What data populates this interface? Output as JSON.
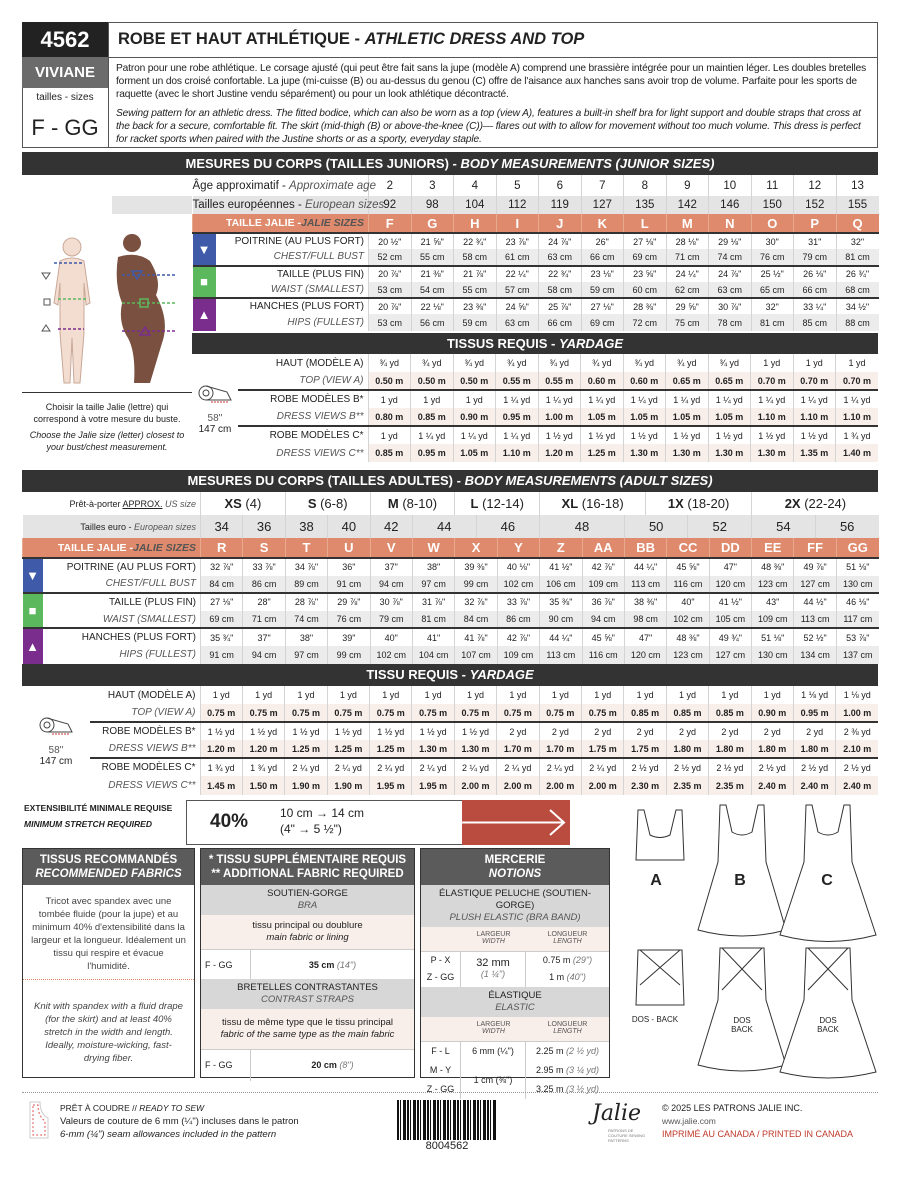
{
  "header": {
    "number": "4562",
    "name": "VIVIANE",
    "sizes_label": "tailles - sizes",
    "size_range": "F - GG",
    "title_fr": "ROBE ET HAUT ATHLÉTIQUE - ",
    "title_en": "ATHLETIC DRESS AND TOP",
    "desc_fr": "Patron pour une robe athlétique. Le corsage ajusté (qui peut être fait sans la jupe (modèle A) comprend une brassière intégrée pour un maintien léger. Les doubles bretelles forment un dos croisé confortable. La jupe (mi-cuisse (B) ou au-dessus du genou (C) offre de l'aisance aux hanches sans avoir trop de volume. Parfaite pour les sports de raquette (avec le short Justine vendu séparément) ou pour un look athlétique décontracté.",
    "desc_en": "Sewing pattern for an athletic dress. The fitted bodice, which can also be worn as a top (view A), features a built-in shelf bra for light support and double straps that cross at the back for a secure, comfortable fit. The skirt (mid-thigh (B) or above-the-knee (C))— flares out with to allow for movement without too much volume. This dress is perfect for racket sports when paired with the Justine shorts or as a sporty, everyday staple."
  },
  "colors": {
    "chest": "#3f5aa8",
    "waist": "#5cb85c",
    "hips": "#7b2d8e",
    "jalie": "#df8a6c",
    "stretch": "#b94c3f",
    "dark": "#333333"
  },
  "junior": {
    "title_fr": "MESURES DU CORPS (TAILLES JUNIORS) - ",
    "title_en": "BODY MEASUREMENTS (JUNIOR SIZES)",
    "row1_fr": "Âge approximatif",
    "row1_en": "Approximate age",
    "values1": [
      "2",
      "3",
      "4",
      "5",
      "6",
      "7",
      "8",
      "9",
      "10",
      "11",
      "12",
      "13"
    ],
    "euro_fr": "Tailles européennes",
    "euro_en": "European sizes",
    "euro": [
      "92",
      "98",
      "104",
      "112",
      "119",
      "127",
      "135",
      "142",
      "146",
      "150",
      "152",
      "155"
    ],
    "jalie_fr": "TAILLE JALIE -",
    "jalie_en": "JALIE SIZES",
    "sizes": [
      "F",
      "G",
      "H",
      "I",
      "J",
      "K",
      "L",
      "M",
      "N",
      "O",
      "P",
      "Q"
    ],
    "measurements": [
      {
        "label_fr": "POITRINE (AU PLUS FORT)",
        "label_en": "CHEST/FULL BUST",
        "icon": "triangle-down-icon",
        "inches": [
          "20 ½\"",
          "21 ⅝\"",
          "22 ¾\"",
          "23 ⅞\"",
          "24 ⅞\"",
          "26\"",
          "27 ⅛\"",
          "28 ⅛\"",
          "29 ⅛\"",
          "30\"",
          "31\"",
          "32\""
        ],
        "cm": [
          "52 cm",
          "55 cm",
          "58 cm",
          "61 cm",
          "63 cm",
          "66 cm",
          "69 cm",
          "71 cm",
          "74 cm",
          "76 cm",
          "79 cm",
          "81 cm"
        ]
      },
      {
        "label_fr": "TAILLE (PLUS FIN)",
        "label_en": "WAIST (SMALLEST)",
        "icon": "square-icon",
        "inches": [
          "20 ⅞\"",
          "21 ⅜\"",
          "21 ⅞\"",
          "22 ¼\"",
          "22 ¾\"",
          "23 ⅛\"",
          "23 ⅝\"",
          "24 ¼\"",
          "24 ⅞\"",
          "25 ½\"",
          "26 ⅛\"",
          "26 ¾\""
        ],
        "cm": [
          "53 cm",
          "54 cm",
          "55 cm",
          "57 cm",
          "58 cm",
          "59 cm",
          "60 cm",
          "62 cm",
          "63 cm",
          "65 cm",
          "66 cm",
          "68 cm"
        ]
      },
      {
        "label_fr": "HANCHES (PLUS FORT)",
        "label_en": "HIPS (FULLEST)",
        "icon": "triangle-up-icon",
        "inches": [
          "20 ⅞\"",
          "22 ⅛\"",
          "23 ⅜\"",
          "24 ⅝\"",
          "25 ⅞\"",
          "27 ⅛\"",
          "28 ⅜\"",
          "29 ⅝\"",
          "30 ⅞\"",
          "32\"",
          "33 ¼\"",
          "34 ½\""
        ],
        "cm": [
          "53 cm",
          "56 cm",
          "59 cm",
          "63 cm",
          "66 cm",
          "69 cm",
          "72 cm",
          "75 cm",
          "78 cm",
          "81 cm",
          "85 cm",
          "88 cm"
        ]
      }
    ],
    "note_fr": "Choisir la taille Jalie (lettre) qui correspond à votre mesure du buste.",
    "note_en": "Choose the Jalie size (letter) closest to your bust/chest measurement.",
    "yardage": {
      "title_fr": "TISSUS REQUIS - ",
      "title_en": "YARDAGE",
      "width_in": "58''",
      "width_cm": "147 cm",
      "rows": [
        {
          "label_fr": "HAUT (MODÈLE A)",
          "label_en": "TOP (VIEW A)",
          "yd": [
            "¾ yd",
            "¾ yd",
            "¾ yd",
            "¾ yd",
            "¾ yd",
            "¾ yd",
            "¾ yd",
            "¾ yd",
            "¾ yd",
            "1 yd",
            "1 yd",
            "1 yd"
          ],
          "m": [
            "0.50 m",
            "0.50 m",
            "0.50 m",
            "0.55 m",
            "0.55 m",
            "0.60 m",
            "0.60 m",
            "0.65 m",
            "0.65 m",
            "0.70 m",
            "0.70 m",
            "0.70 m"
          ]
        },
        {
          "label_fr": "ROBE MODÈLES B*",
          "label_en": "DRESS VIEWS B**",
          "yd": [
            "1 yd",
            "1 yd",
            "1 yd",
            "1 ¼ yd",
            "1 ¼ yd",
            "1 ¼ yd",
            "1 ¼ yd",
            "1 ¼ yd",
            "1 ¼ yd",
            "1 ¼ yd",
            "1 ¼ yd",
            "1 ¼ yd"
          ],
          "m": [
            "0.80 m",
            "0.85 m",
            "0.90 m",
            "0.95 m",
            "1.00 m",
            "1.05 m",
            "1.05 m",
            "1.05 m",
            "1.05 m",
            "1.10 m",
            "1.10 m",
            "1.10 m"
          ]
        },
        {
          "label_fr": "ROBE MODÈLES C*",
          "label_en": "DRESS VIEWS C**",
          "yd": [
            "1 yd",
            "1 ¼ yd",
            "1 ¼ yd",
            "1 ¼ yd",
            "1 ½ yd",
            "1 ½ yd",
            "1 ½ yd",
            "1 ½ yd",
            "1 ½ yd",
            "1 ½ yd",
            "1 ½ yd",
            "1 ¾ yd"
          ],
          "m": [
            "0.85 m",
            "0.95 m",
            "1.05 m",
            "1.10 m",
            "1.20 m",
            "1.25 m",
            "1.30 m",
            "1.30 m",
            "1.30 m",
            "1.30 m",
            "1.35 m",
            "1.40 m"
          ]
        }
      ]
    }
  },
  "adult": {
    "title_fr": "MESURES DU CORPS (TAILLES ADULTES) - ",
    "title_en": "BODY MEASUREMENTS (ADULT SIZES)",
    "us_fr": "Prêt-à-porter ",
    "us_approx": "APPROX.",
    "us_en": " US size",
    "us_sizes": [
      {
        "size": "XS",
        "range": " (4)"
      },
      {
        "size": "S",
        "range": " (6-8)"
      },
      {
        "size": "M",
        "range": " (8-10)"
      },
      {
        "size": "L",
        "range": " (12-14)"
      },
      {
        "size": "XL",
        "range": " (16-18)"
      },
      {
        "size": "1X",
        "range": " (18-20)"
      },
      {
        "size": "2X",
        "range": " (22-24)"
      }
    ],
    "euro_fr": "Tailles euro - ",
    "euro_en": "European sizes",
    "euro": [
      "34",
      "36",
      "38",
      "40",
      "42",
      "44",
      "46",
      "48",
      "50",
      "52",
      "54",
      "56"
    ],
    "jalie_fr": "TAILLE JALIE -",
    "jalie_en": "JALIE SIZES",
    "sizes": [
      "R",
      "S",
      "T",
      "U",
      "V",
      "W",
      "X",
      "Y",
      "Z",
      "AA",
      "BB",
      "CC",
      "DD",
      "EE",
      "FF",
      "GG"
    ],
    "measurements": [
      {
        "label_fr": "POITRINE (AU PLUS FORT)",
        "label_en": "CHEST/FULL BUST",
        "icon": "triangle-down-icon",
        "inches": [
          "32 ⅞\"",
          "33 ⅞\"",
          "34 ⅞\"",
          "36\"",
          "37\"",
          "38\"",
          "39 ⅜\"",
          "40 ⅛\"",
          "41 ½\"",
          "42 ⅞\"",
          "44 ¼\"",
          "45 ⅝\"",
          "47\"",
          "48 ⅜\"",
          "49 ⅞\"",
          "51 ⅛\""
        ],
        "cm": [
          "84 cm",
          "86 cm",
          "89 cm",
          "91 cm",
          "94 cm",
          "97 cm",
          "99 cm",
          "102 cm",
          "106 cm",
          "109 cm",
          "113 cm",
          "116 cm",
          "120 cm",
          "123 cm",
          "127 cm",
          "130 cm"
        ]
      },
      {
        "label_fr": "TAILLE (PLUS FIN)",
        "label_en": "WAIST (SMALLEST)",
        "icon": "square-icon",
        "inches": [
          "27 ⅛\"",
          "28\"",
          "28 ⅞\"",
          "29 ⅞\"",
          "30 ⅞\"",
          "31 ⅞\"",
          "32 ⅞\"",
          "33 ⅞\"",
          "35 ⅜\"",
          "36 ⅞\"",
          "38 ⅜\"",
          "40\"",
          "41 ½\"",
          "43\"",
          "44 ½\"",
          "46 ⅛\""
        ],
        "cm": [
          "69 cm",
          "71 cm",
          "74 cm",
          "76 cm",
          "79 cm",
          "81 cm",
          "84 cm",
          "86 cm",
          "90 cm",
          "94 cm",
          "98 cm",
          "102 cm",
          "105 cm",
          "109 cm",
          "113 cm",
          "117 cm"
        ]
      },
      {
        "label_fr": "HANCHES (PLUS FORT)",
        "label_en": "HIPS (FULLEST)",
        "icon": "triangle-up-icon",
        "inches": [
          "35 ¾\"",
          "37\"",
          "38\"",
          "39\"",
          "40\"",
          "41\"",
          "41 ⅞\"",
          "42 ⅞\"",
          "44 ¼\"",
          "45 ⅝\"",
          "47\"",
          "48 ⅜\"",
          "49 ¾\"",
          "51 ⅛\"",
          "52 ½\"",
          "53 ⅞\""
        ],
        "cm": [
          "91 cm",
          "94 cm",
          "97 cm",
          "99 cm",
          "102 cm",
          "104 cm",
          "107 cm",
          "109 cm",
          "113 cm",
          "116 cm",
          "120 cm",
          "123 cm",
          "127 cm",
          "130 cm",
          "134 cm",
          "137 cm"
        ]
      }
    ],
    "yardage": {
      "title_fr": "TISSU REQUIS - ",
      "title_en": "YARDAGE",
      "width_in": "58''",
      "width_cm": "147 cm",
      "rows": [
        {
          "label_fr": "HAUT (MODÈLE A)",
          "label_en": "TOP (VIEW A)",
          "yd": [
            "1 yd",
            "1 yd",
            "1 yd",
            "1 yd",
            "1 yd",
            "1 yd",
            "1 yd",
            "1 yd",
            "1 yd",
            "1 yd",
            "1 yd",
            "1 yd",
            "1 yd",
            "1 yd",
            "1 ⅛ yd",
            "1 ⅛ yd"
          ],
          "m": [
            "0.75 m",
            "0.75 m",
            "0.75 m",
            "0.75 m",
            "0.75 m",
            "0.75 m",
            "0.75 m",
            "0.75 m",
            "0.75 m",
            "0.75 m",
            "0.85 m",
            "0.85 m",
            "0.85 m",
            "0.90 m",
            "0.95 m",
            "1.00 m"
          ]
        },
        {
          "label_fr": "ROBE MODÈLES B*",
          "label_en": "DRESS VIEWS B**",
          "yd": [
            "1 ½ yd",
            "1 ½ yd",
            "1 ½ yd",
            "1 ½ yd",
            "1 ½ yd",
            "1 ½ yd",
            "1 ½ yd",
            "2 yd",
            "2 yd",
            "2 yd",
            "2 yd",
            "2 yd",
            "2 yd",
            "2 yd",
            "2 yd",
            "2 ⅜ yd"
          ],
          "m": [
            "1.20 m",
            "1.20 m",
            "1.25 m",
            "1.25 m",
            "1.25 m",
            "1.30 m",
            "1.30 m",
            "1.70 m",
            "1.70 m",
            "1.75 m",
            "1.75 m",
            "1.80 m",
            "1.80 m",
            "1.80 m",
            "1.80 m",
            "2.10 m"
          ]
        },
        {
          "label_fr": "ROBE MODÈLES C*",
          "label_en": "DRESS VIEWS C**",
          "yd": [
            "1 ¾ yd",
            "1 ¾ yd",
            "2 ¼ yd",
            "2 ¼ yd",
            "2 ¼ yd",
            "2 ¼ yd",
            "2 ¼ yd",
            "2 ¼ yd",
            "2 ¼ yd",
            "2 ¼ yd",
            "2 ½ yd",
            "2 ½ yd",
            "2 ½ yd",
            "2 ½ yd",
            "2 ½ yd",
            "2 ½ yd"
          ],
          "m": [
            "1.45 m",
            "1.50 m",
            "1.90 m",
            "1.90 m",
            "1.95 m",
            "1.95 m",
            "2.00 m",
            "2.00 m",
            "2.00 m",
            "2.00 m",
            "2.30 m",
            "2.35 m",
            "2.35 m",
            "2.40 m",
            "2.40 m",
            "2.40 m"
          ]
        }
      ]
    }
  },
  "stretch": {
    "label_fr": "EXTENSIBILITÉ MINIMALE REQUISE",
    "label_en": "MINIMUM STRETCH REQUIRED",
    "percent": "40%",
    "metric": "10 cm → 14 cm",
    "imperial": "(4\" → 5 ½\")",
    "icon": "arrow-right-icon"
  },
  "fabrics": {
    "title_fr": "TISSUS RECOMMANDÉS",
    "title_en": "RECOMMENDED FABRICS",
    "text_fr": "Tricot avec spandex avec une tombée fluide (pour la jupe) et au minimum 40% d'extensibilité dans la largeur et la longueur. Idéalement un tissu qui respire et évacue l'humidité.",
    "text_en": "Knit with spandex with a fluid drape (for the skirt) and at least 40% stretch in the width and length. Ideally, moisture-wicking, fast-drying fiber."
  },
  "additional": {
    "title_fr": "* TISSU SUPPLÉMENTAIRE REQUIS",
    "title_en": "** ADDITIONAL FABRIC REQUIRED",
    "items": [
      {
        "name_fr": "SOUTIEN-GORGE",
        "name_en": "BRA",
        "fabric_fr": "tissu principal ou doublure",
        "fabric_en": "main fabric or lining",
        "sizes": "F - GG",
        "amount": "35 cm",
        "amount_in": "(14\")"
      },
      {
        "name_fr": "BRETELLES CONTRASTANTES",
        "name_en": "CONTRAST STRAPS",
        "fabric_fr": "tissu de même type que le tissu principal",
        "fabric_en": "fabric of the same type as the main fabric",
        "sizes": "F - GG",
        "amount": "20 cm",
        "amount_in": "(8\")"
      }
    ]
  },
  "notions": {
    "title_fr": "MERCERIE",
    "title_en": "NOTIONS",
    "width_fr": "LARGEUR",
    "width_en": "WIDTH",
    "length_fr": "LONGUEUR",
    "length_en": "LENGTH",
    "plush": {
      "name_fr": "ÉLASTIQUE PELUCHE (SOUTIEN-GORGE)",
      "name_en": "PLUSH ELASTIC (BRA BAND)",
      "width": "32 mm",
      "width_in": "(1 ¼\")",
      "rows": [
        {
          "sizes": "P - X",
          "length": "0.75 m",
          "length_in": "(29\")"
        },
        {
          "sizes": "Z - GG",
          "length": "1 m",
          "length_in": "(40\")"
        }
      ]
    },
    "elastic": {
      "name_fr": "ÉLASTIQUE",
      "name_en": "ELASTIC",
      "rows": [
        {
          "sizes": "F - L",
          "width": "6 mm (¼\")",
          "length": "2.25 m",
          "length_in": "(2 ½ yd)"
        },
        {
          "sizes": "M - Y",
          "width": "1 cm (⅜\")",
          "length": "2.95 m",
          "length_in": "(3 ¼ yd)"
        },
        {
          "sizes": "Z - GG",
          "length": "3.25 m",
          "length_in": "(3 ½ yd)"
        }
      ]
    }
  },
  "views": {
    "a": "A",
    "b": "B",
    "c": "C",
    "back_a": "DOS - BACK",
    "back_b_fr": "DOS",
    "back_b_en": "BACK",
    "back_c_fr": "DOS",
    "back_c_en": "BACK"
  },
  "footer": {
    "ready_fr": "PRÊT À COUDRE // ",
    "ready_en": "READY TO SEW",
    "seam_fr": "Valeurs de couture de 6 mm (¼\") incluses dans le patron",
    "seam_en": "6-mm (¼\") seam allowances included in the pattern",
    "barcode": "8004562",
    "copyright": "© 2025 LES PATRONS JALIE INC.",
    "website": "www.jalie.com",
    "printed": "IMPRIMÉ AU CANADA / PRINTED IN CANADA",
    "logo_text": "Jalie",
    "logo_sub": "PATRONS DE COUTURE SEWING PATTERNS"
  }
}
